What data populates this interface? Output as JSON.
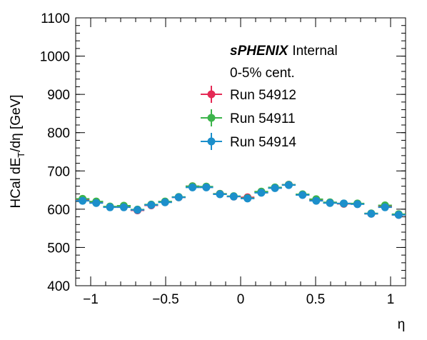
{
  "chart_data": {
    "type": "scatter",
    "xlabel": "η",
    "ylabel": [
      "HCal dE",
      "T",
      "/dη [GeV]"
    ],
    "annotations": [
      "sPHENIX",
      "Internal",
      "0-5% cent."
    ],
    "xlim": [
      -1.1,
      1.1
    ],
    "ylim": [
      400,
      1100
    ],
    "xticks": [
      {
        "value": -1,
        "label": "−1"
      },
      {
        "value": -0.5,
        "label": "−0.5"
      },
      0,
      0.5,
      1
    ],
    "yticks": [
      400,
      500,
      600,
      700,
      800,
      900,
      1000,
      1100
    ],
    "xerr": 0.0458,
    "legend": "top-right",
    "x": [
      -1.054,
      -0.963,
      -0.871,
      -0.779,
      -0.688,
      -0.596,
      -0.504,
      -0.413,
      -0.321,
      -0.229,
      -0.138,
      -0.046,
      0.046,
      0.138,
      0.229,
      0.321,
      0.413,
      0.504,
      0.596,
      0.688,
      0.779,
      0.871,
      0.963,
      1.054
    ],
    "series": [
      {
        "name": "Run 54912",
        "color": "#e42a55",
        "values": [
          625,
          619,
          606,
          607,
          597,
          610,
          619,
          631,
          660,
          658,
          640,
          633,
          631,
          645,
          656,
          664,
          638,
          624,
          617,
          614,
          614,
          588,
          607,
          585
        ]
      },
      {
        "name": "Run 54911",
        "color": "#3cb44b",
        "values": [
          627,
          620,
          607,
          609,
          599,
          612,
          620,
          632,
          660,
          659,
          640,
          634,
          629,
          646,
          657,
          664,
          639,
          626,
          618,
          615,
          615,
          589,
          610,
          587
        ]
      },
      {
        "name": "Run 54914",
        "color": "#1c8fcb",
        "values": [
          622,
          616,
          605,
          605,
          598,
          611,
          618,
          631,
          657,
          657,
          639,
          633,
          628,
          643,
          655,
          663,
          637,
          622,
          616,
          615,
          613,
          588,
          605,
          585
        ]
      }
    ]
  }
}
